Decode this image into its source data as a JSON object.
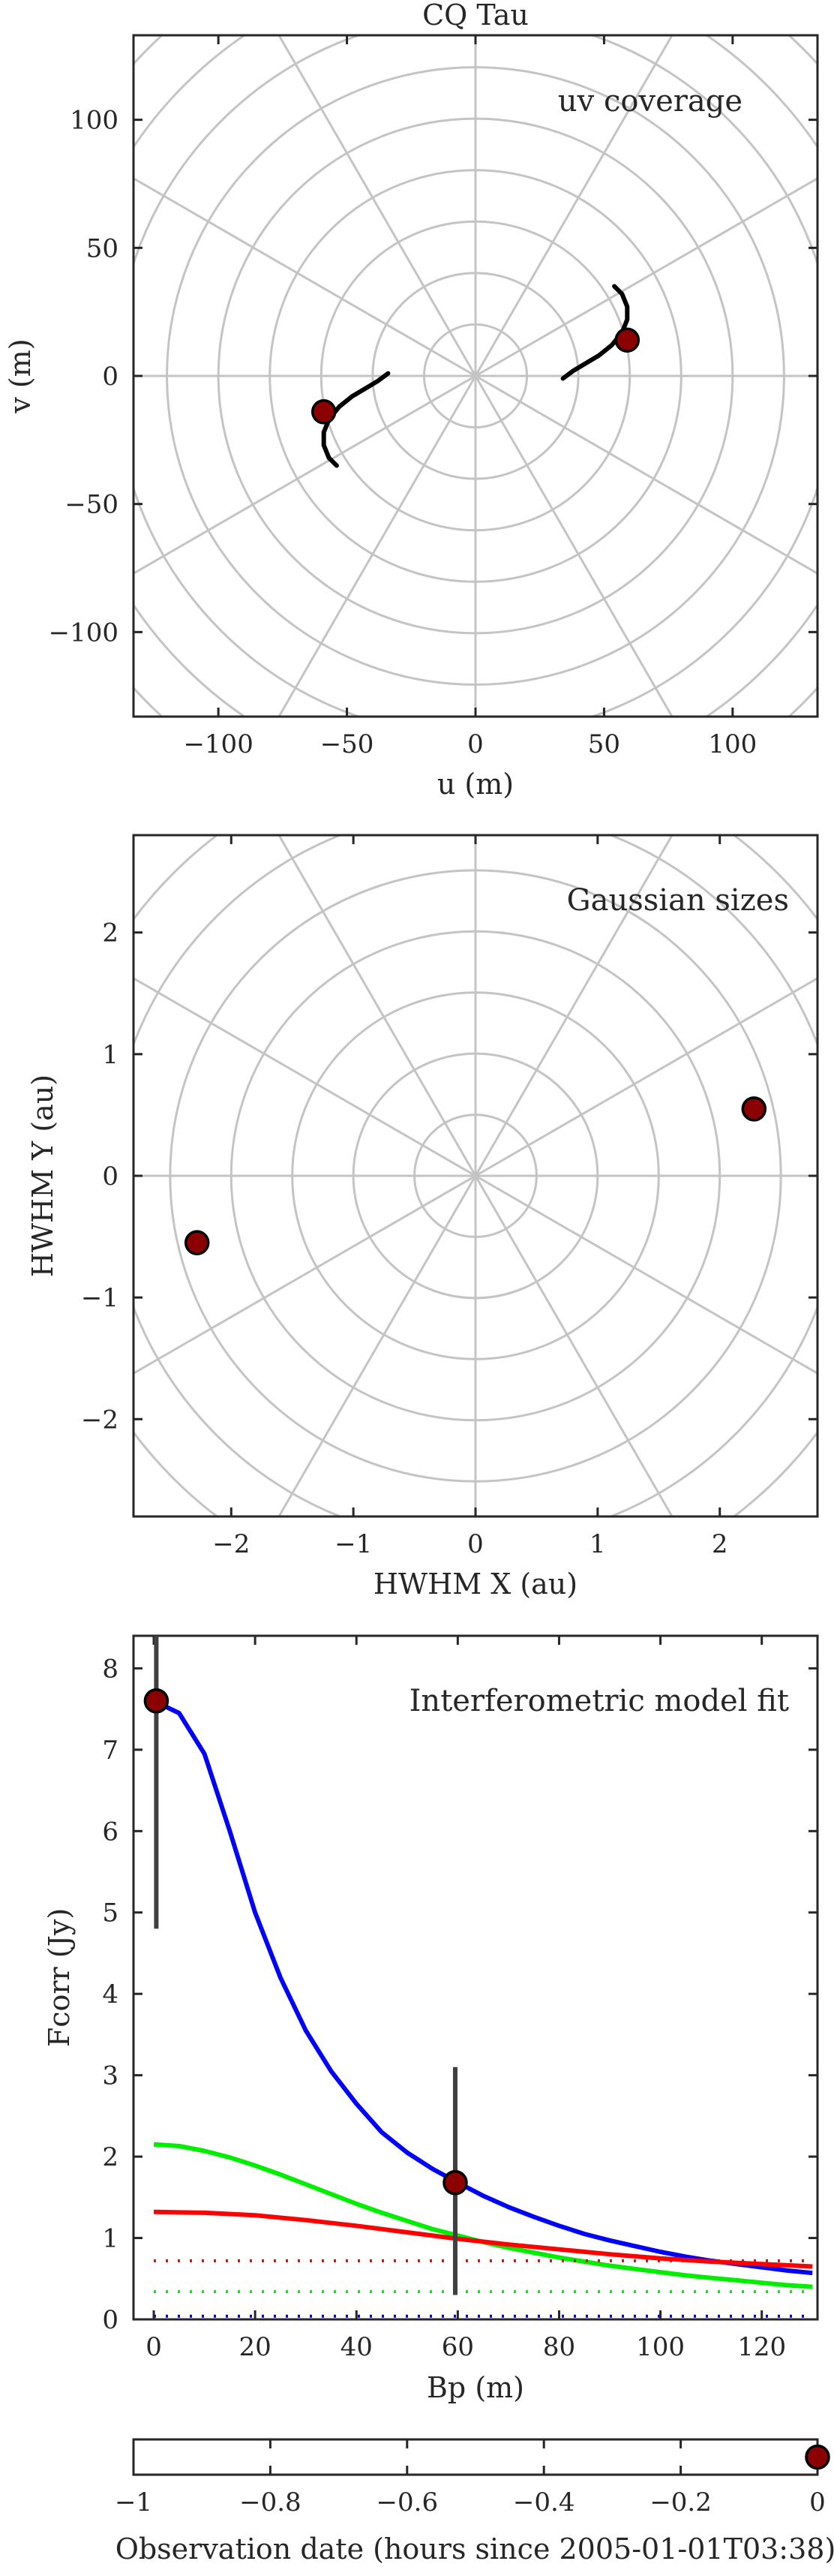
{
  "chart_data": [
    {
      "id": "uv",
      "type": "scatter",
      "title": "CQ Tau",
      "annotation": "uv coverage",
      "xlabel": "u (m)",
      "ylabel": "v (m)",
      "xlim": [
        -133,
        133
      ],
      "ylim": [
        -133,
        133
      ],
      "xticks": [
        -100,
        -50,
        0,
        50,
        100
      ],
      "yticks": [
        -100,
        -50,
        0,
        50,
        100
      ],
      "polar_grid": {
        "rings": [
          20,
          40,
          60,
          80,
          100,
          120,
          140,
          160,
          180
        ],
        "spoke_step_deg": 30
      },
      "tracks": [
        [
          [
            34,
            -1
          ],
          [
            38,
            2
          ],
          [
            43,
            5
          ],
          [
            48,
            8
          ],
          [
            53,
            12
          ],
          [
            57,
            17
          ],
          [
            59,
            22
          ],
          [
            59,
            27
          ],
          [
            57,
            32
          ],
          [
            54,
            35
          ]
        ],
        [
          [
            -34,
            1
          ],
          [
            -38,
            -2
          ],
          [
            -43,
            -5
          ],
          [
            -48,
            -8
          ],
          [
            -53,
            -12
          ],
          [
            -57,
            -17
          ],
          [
            -59,
            -22
          ],
          [
            -59,
            -27
          ],
          [
            -57,
            -32
          ],
          [
            -54,
            -35
          ]
        ]
      ],
      "points": [
        [
          59,
          14
        ],
        [
          -59,
          -14
        ]
      ]
    },
    {
      "id": "gauss",
      "type": "scatter",
      "annotation": "Gaussian sizes",
      "xlabel": "HWHM X (au)",
      "ylabel": "HWHM Y (au)",
      "xlim": [
        -2.8,
        2.8
      ],
      "ylim": [
        -2.8,
        2.8
      ],
      "xticks": [
        -2,
        -1,
        0,
        1,
        2
      ],
      "yticks": [
        -2,
        -1,
        0,
        1,
        2
      ],
      "polar_grid": {
        "rings": [
          0.5,
          1,
          1.5,
          2,
          2.5,
          3,
          3.5
        ],
        "spoke_step_deg": 30
      },
      "points": [
        [
          2.28,
          0.55
        ],
        [
          -2.28,
          -0.55
        ]
      ]
    },
    {
      "id": "fit",
      "type": "line",
      "annotation": "Interferometric model fit",
      "xlabel": "Bp (m)",
      "ylabel": "Fcorr (Jy)",
      "xlim": [
        -4,
        131
      ],
      "ylim": [
        0,
        8.4
      ],
      "xticks": [
        0,
        20,
        40,
        60,
        80,
        100,
        120
      ],
      "yticks": [
        0,
        1,
        2,
        3,
        4,
        5,
        6,
        7,
        8
      ],
      "series": [
        {
          "color": "#0000ff",
          "style": "solid",
          "x": [
            0,
            5,
            10,
            15,
            20,
            25,
            30,
            35,
            40,
            45,
            50,
            55,
            60,
            65,
            70,
            75,
            80,
            85,
            90,
            95,
            100,
            105,
            110,
            115,
            120,
            125,
            130
          ],
          "y": [
            7.6,
            7.45,
            6.95,
            6.0,
            5.0,
            4.2,
            3.55,
            3.05,
            2.65,
            2.3,
            2.05,
            1.85,
            1.68,
            1.52,
            1.38,
            1.26,
            1.15,
            1.05,
            0.97,
            0.9,
            0.83,
            0.77,
            0.72,
            0.68,
            0.64,
            0.6,
            0.57
          ]
        },
        {
          "color": "#00ee00",
          "style": "solid",
          "x": [
            0,
            5,
            10,
            15,
            20,
            25,
            30,
            35,
            40,
            45,
            50,
            55,
            60,
            65,
            70,
            75,
            80,
            85,
            90,
            95,
            100,
            105,
            110,
            115,
            120,
            125,
            130
          ],
          "y": [
            2.15,
            2.13,
            2.07,
            1.99,
            1.89,
            1.78,
            1.66,
            1.54,
            1.42,
            1.31,
            1.21,
            1.11,
            1.03,
            0.95,
            0.88,
            0.82,
            0.76,
            0.71,
            0.66,
            0.62,
            0.58,
            0.54,
            0.51,
            0.48,
            0.45,
            0.42,
            0.4
          ]
        },
        {
          "color": "#ff0000",
          "style": "solid",
          "x": [
            0,
            10,
            20,
            30,
            40,
            50,
            60,
            70,
            80,
            90,
            100,
            110,
            120,
            130
          ],
          "y": [
            1.32,
            1.31,
            1.28,
            1.22,
            1.15,
            1.07,
            0.99,
            0.92,
            0.86,
            0.8,
            0.75,
            0.71,
            0.68,
            0.65
          ]
        },
        {
          "color": "#ff0000",
          "style": "dotted",
          "x": [
            0,
            130
          ],
          "y": [
            0.72,
            0.72
          ]
        },
        {
          "color": "#00ee00",
          "style": "dotted",
          "x": [
            0,
            130
          ],
          "y": [
            0.34,
            0.34
          ]
        },
        {
          "color": "#0000ff",
          "style": "dotted",
          "x": [
            0,
            130
          ],
          "y": [
            0.04,
            0.04
          ]
        }
      ],
      "points": [
        {
          "x": 0.5,
          "y": 7.6,
          "err": [
            4.8,
            8.4
          ]
        },
        {
          "x": 59.5,
          "y": 1.68,
          "err": [
            0.3,
            3.1
          ]
        }
      ]
    },
    {
      "id": "time",
      "type": "scatter",
      "xlabel": "Observation date (hours since 2005-01-01T03:38)",
      "xlim": [
        -1,
        0
      ],
      "xticks": [
        -1,
        -0.8,
        -0.6,
        -0.4,
        -0.2,
        0
      ],
      "tick_labels": [
        "-1",
        "-0.8",
        "-0.6",
        "-0.4",
        "-0.2",
        "0"
      ],
      "points": [
        [
          0,
          0
        ]
      ]
    }
  ],
  "colors": {
    "axis": "#262626",
    "grid": "#c4c4c4",
    "track": "#000000",
    "marker_fill": "#8b0000",
    "errorbar": "#404040"
  }
}
